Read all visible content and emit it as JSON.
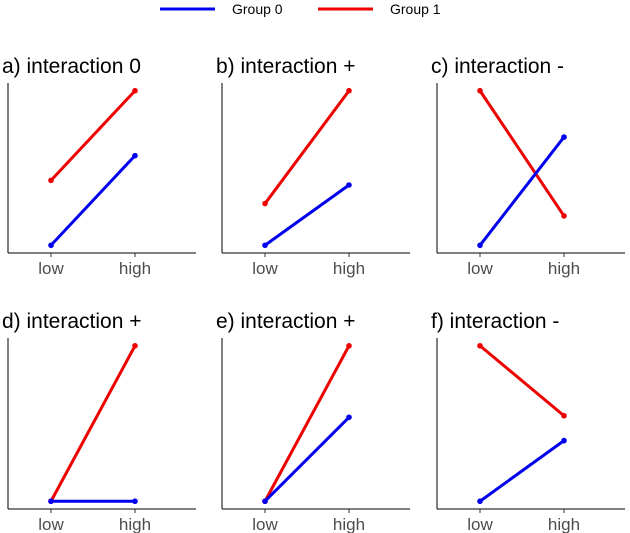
{
  "chart_data": {
    "type": "line",
    "legend": {
      "placement": "top-center",
      "entries": [
        {
          "name": "Group 0",
          "color": "#0000ee"
        },
        {
          "name": "Group 1",
          "color": "#ee0000"
        }
      ]
    },
    "x_categories": [
      "low",
      "high"
    ],
    "ylim": [
      -0.05,
      1.05
    ],
    "grid": false,
    "panels": [
      {
        "title": "a) interaction 0",
        "series": [
          {
            "name": "Group 0",
            "values": [
              0,
              0.58
            ]
          },
          {
            "name": "Group 1",
            "values": [
              0.42,
              1
            ]
          }
        ]
      },
      {
        "title": "b) interaction +",
        "series": [
          {
            "name": "Group 0",
            "values": [
              0,
              0.39
            ]
          },
          {
            "name": "Group 1",
            "values": [
              0.27,
              1
            ]
          }
        ]
      },
      {
        "title": "c) interaction -",
        "series": [
          {
            "name": "Group 0",
            "values": [
              0,
              0.7
            ]
          },
          {
            "name": "Group 1",
            "values": [
              1,
              0.19
            ]
          }
        ]
      },
      {
        "title": "d) interaction +",
        "series": [
          {
            "name": "Group 0",
            "values": [
              0,
              0
            ]
          },
          {
            "name": "Group 1",
            "values": [
              0,
              1
            ]
          }
        ]
      },
      {
        "title": "e) interaction +",
        "series": [
          {
            "name": "Group 0",
            "values": [
              0,
              0.54
            ]
          },
          {
            "name": "Group 1",
            "values": [
              0,
              1
            ]
          }
        ]
      },
      {
        "title": "f) interaction -",
        "series": [
          {
            "name": "Group 0",
            "values": [
              0,
              0.39
            ]
          },
          {
            "name": "Group 1",
            "values": [
              1,
              0.55
            ]
          }
        ]
      }
    ]
  }
}
